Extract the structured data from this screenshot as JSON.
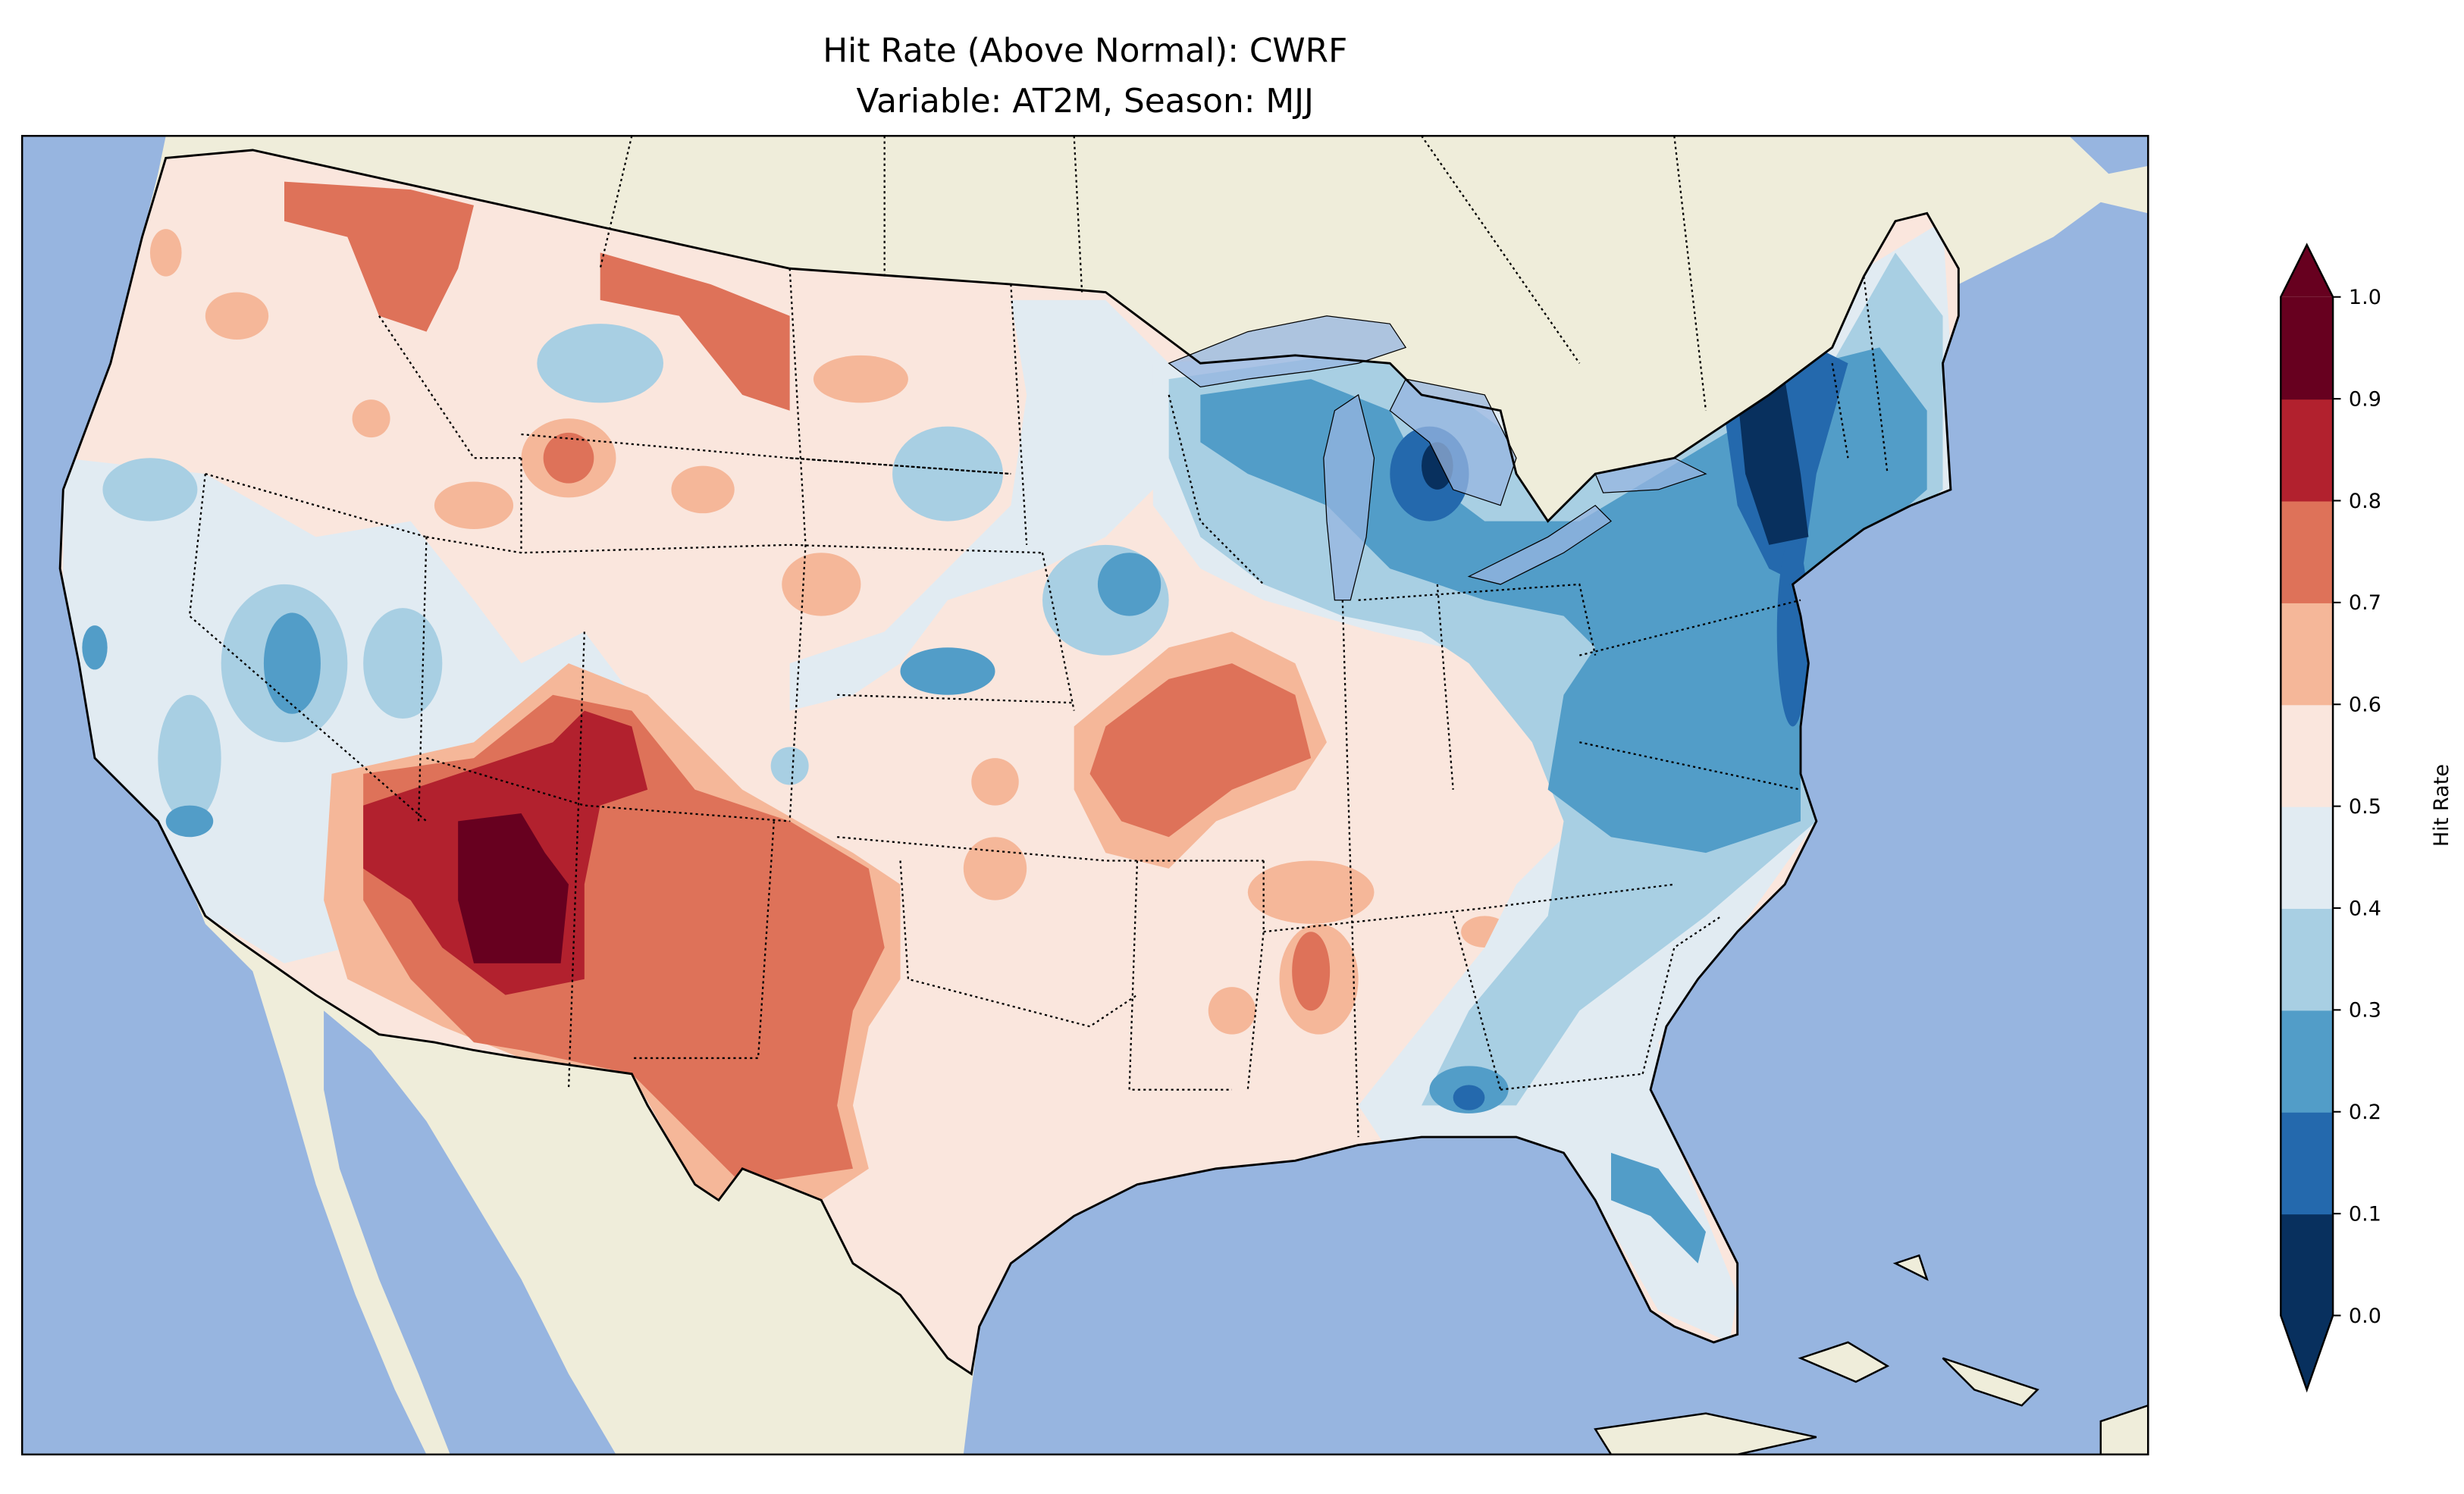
{
  "chart_data": {
    "type": "heatmap",
    "title": "Hit Rate (Above Normal): CWRF",
    "subtitle": "Variable: AT2M, Season: MJJ",
    "colorbar_label": "Hit Rate",
    "colorbar_ticks": [
      "0.0",
      "0.1",
      "0.2",
      "0.3",
      "0.4",
      "0.5",
      "0.6",
      "0.7",
      "0.8",
      "0.9",
      "1.0"
    ],
    "levels": [
      0.0,
      0.1,
      0.2,
      0.3,
      0.4,
      0.5,
      0.6,
      0.7,
      0.8,
      0.9,
      1.0
    ],
    "extend": "both",
    "colors": [
      "#08305e",
      "#2469ad",
      "#529dc8",
      "#a8cfe3",
      "#e1ebf2",
      "#fae6dd",
      "#f5b799",
      "#de7259",
      "#b2212e",
      "#67001f"
    ],
    "ocean_color": "#97b5e0",
    "land_color": "#efedda"
  }
}
